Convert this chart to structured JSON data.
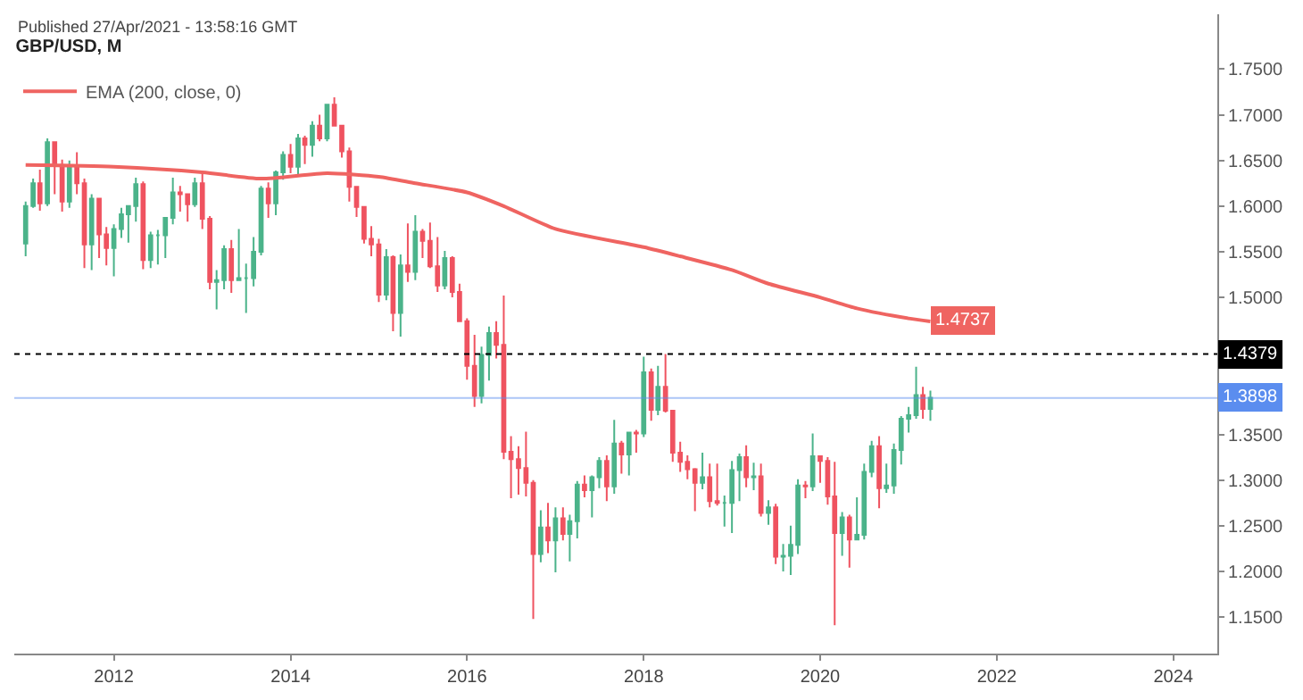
{
  "chart_data": {
    "type": "candlestick",
    "title": "GBP/USD, M",
    "annotations": [
      "Published 27/Apr/2021 - 13:58:16 GMT",
      {
        "text": "1.4737",
        "x": "2021-04",
        "y": 1.4737
      }
    ],
    "x": [
      "2011-01",
      "2011-02",
      "2011-03",
      "2011-04",
      "2011-05",
      "2011-06",
      "2011-07",
      "2011-08",
      "2011-09",
      "2011-10",
      "2011-11",
      "2011-12",
      "2012-01",
      "2012-02",
      "2012-03",
      "2012-04",
      "2012-05",
      "2012-06",
      "2012-07",
      "2012-08",
      "2012-09",
      "2012-10",
      "2012-11",
      "2012-12",
      "2013-01",
      "2013-02",
      "2013-03",
      "2013-04",
      "2013-05",
      "2013-06",
      "2013-07",
      "2013-08",
      "2013-09",
      "2013-10",
      "2013-11",
      "2013-12",
      "2014-01",
      "2014-02",
      "2014-03",
      "2014-04",
      "2014-05",
      "2014-06",
      "2014-07",
      "2014-08",
      "2014-09",
      "2014-10",
      "2014-11",
      "2014-12",
      "2015-01",
      "2015-02",
      "2015-03",
      "2015-04",
      "2015-05",
      "2015-06",
      "2015-07",
      "2015-08",
      "2015-09",
      "2015-10",
      "2015-11",
      "2015-12",
      "2016-01",
      "2016-02",
      "2016-03",
      "2016-04",
      "2016-05",
      "2016-06",
      "2016-07",
      "2016-08",
      "2016-09",
      "2016-10",
      "2016-11",
      "2016-12",
      "2017-01",
      "2017-02",
      "2017-03",
      "2017-04",
      "2017-05",
      "2017-06",
      "2017-07",
      "2017-08",
      "2017-09",
      "2017-10",
      "2017-11",
      "2017-12",
      "2018-01",
      "2018-02",
      "2018-03",
      "2018-04",
      "2018-05",
      "2018-06",
      "2018-07",
      "2018-08",
      "2018-09",
      "2018-10",
      "2018-11",
      "2018-12",
      "2019-01",
      "2019-02",
      "2019-03",
      "2019-04",
      "2019-05",
      "2019-06",
      "2019-07",
      "2019-08",
      "2019-09",
      "2019-10",
      "2019-11",
      "2019-12",
      "2020-01",
      "2020-02",
      "2020-03",
      "2020-04",
      "2020-05",
      "2020-06",
      "2020-07",
      "2020-08",
      "2020-09",
      "2020-10",
      "2020-11",
      "2020-12",
      "2021-01",
      "2021-02",
      "2021-03",
      "2021-04"
    ],
    "ohlc": [
      [
        1.559,
        1.605,
        1.545,
        1.6
      ],
      [
        1.6,
        1.63,
        1.598,
        1.625
      ],
      [
        1.625,
        1.64,
        1.595,
        1.603
      ],
      [
        1.603,
        1.674,
        1.6,
        1.67
      ],
      [
        1.67,
        1.67,
        1.613,
        1.645
      ],
      [
        1.645,
        1.651,
        1.594,
        1.605
      ],
      [
        1.605,
        1.65,
        1.598,
        1.643
      ],
      [
        1.643,
        1.659,
        1.613,
        1.625
      ],
      [
        1.625,
        1.63,
        1.532,
        1.558
      ],
      [
        1.558,
        1.613,
        1.53,
        1.608
      ],
      [
        1.608,
        1.609,
        1.543,
        1.569
      ],
      [
        1.569,
        1.577,
        1.535,
        1.554
      ],
      [
        1.554,
        1.58,
        1.523,
        1.575
      ],
      [
        1.575,
        1.598,
        1.565,
        1.591
      ],
      [
        1.591,
        1.601,
        1.56,
        1.6
      ],
      [
        1.6,
        1.631,
        1.583,
        1.624
      ],
      [
        1.624,
        1.627,
        1.531,
        1.541
      ],
      [
        1.541,
        1.572,
        1.532,
        1.568
      ],
      [
        1.568,
        1.574,
        1.536,
        1.568
      ],
      [
        1.568,
        1.588,
        1.543,
        1.587
      ],
      [
        1.587,
        1.631,
        1.58,
        1.615
      ],
      [
        1.615,
        1.622,
        1.594,
        1.613
      ],
      [
        1.613,
        1.614,
        1.583,
        1.602
      ],
      [
        1.602,
        1.631,
        1.599,
        1.625
      ],
      [
        1.625,
        1.638,
        1.575,
        1.586
      ],
      [
        1.586,
        1.589,
        1.509,
        1.517
      ],
      [
        1.517,
        1.53,
        1.487,
        1.519
      ],
      [
        1.519,
        1.557,
        1.509,
        1.553
      ],
      [
        1.553,
        1.563,
        1.505,
        1.519
      ],
      [
        1.519,
        1.575,
        1.518,
        1.521
      ],
      [
        1.521,
        1.537,
        1.483,
        1.521
      ],
      [
        1.521,
        1.566,
        1.512,
        1.55
      ],
      [
        1.55,
        1.622,
        1.546,
        1.619
      ],
      [
        1.619,
        1.626,
        1.587,
        1.603
      ],
      [
        1.603,
        1.639,
        1.59,
        1.637
      ],
      [
        1.637,
        1.66,
        1.629,
        1.656
      ],
      [
        1.656,
        1.668,
        1.636,
        1.643
      ],
      [
        1.643,
        1.679,
        1.632,
        1.674
      ],
      [
        1.674,
        1.677,
        1.646,
        1.667
      ],
      [
        1.667,
        1.693,
        1.654,
        1.688
      ],
      [
        1.688,
        1.7,
        1.671,
        1.674
      ],
      [
        1.674,
        1.711,
        1.671,
        1.711
      ],
      [
        1.711,
        1.719,
        1.688,
        1.688
      ],
      [
        1.688,
        1.689,
        1.653,
        1.66
      ],
      [
        1.66,
        1.664,
        1.605,
        1.621
      ],
      [
        1.621,
        1.621,
        1.588,
        1.599
      ],
      [
        1.599,
        1.6,
        1.559,
        1.564
      ],
      [
        1.564,
        1.578,
        1.545,
        1.558
      ],
      [
        1.558,
        1.564,
        1.495,
        1.503
      ],
      [
        1.503,
        1.553,
        1.497,
        1.544
      ],
      [
        1.544,
        1.546,
        1.463,
        1.483
      ],
      [
        1.483,
        1.547,
        1.457,
        1.535
      ],
      [
        1.535,
        1.581,
        1.517,
        1.528
      ],
      [
        1.528,
        1.59,
        1.519,
        1.572
      ],
      [
        1.572,
        1.575,
        1.543,
        1.562
      ],
      [
        1.562,
        1.582,
        1.532,
        1.534
      ],
      [
        1.534,
        1.566,
        1.506,
        1.513
      ],
      [
        1.513,
        1.551,
        1.509,
        1.543
      ],
      [
        1.543,
        1.545,
        1.5,
        1.506
      ],
      [
        1.506,
        1.515,
        1.473,
        1.474
      ],
      [
        1.474,
        1.477,
        1.41,
        1.425
      ],
      [
        1.425,
        1.459,
        1.38,
        1.392
      ],
      [
        1.392,
        1.446,
        1.384,
        1.437
      ],
      [
        1.437,
        1.468,
        1.409,
        1.461
      ],
      [
        1.461,
        1.474,
        1.433,
        1.448
      ],
      [
        1.448,
        1.502,
        1.323,
        1.331
      ],
      [
        1.331,
        1.348,
        1.28,
        1.323
      ],
      [
        1.323,
        1.337,
        1.284,
        1.313
      ],
      [
        1.313,
        1.353,
        1.282,
        1.297
      ],
      [
        1.297,
        1.3,
        1.148,
        1.219
      ],
      [
        1.219,
        1.267,
        1.21,
        1.248
      ],
      [
        1.248,
        1.275,
        1.22,
        1.234
      ],
      [
        1.234,
        1.27,
        1.199,
        1.258
      ],
      [
        1.258,
        1.27,
        1.234,
        1.241
      ],
      [
        1.241,
        1.262,
        1.211,
        1.255
      ],
      [
        1.255,
        1.299,
        1.236,
        1.295
      ],
      [
        1.295,
        1.305,
        1.281,
        1.289
      ],
      [
        1.289,
        1.305,
        1.259,
        1.303
      ],
      [
        1.303,
        1.325,
        1.291,
        1.321
      ],
      [
        1.321,
        1.327,
        1.277,
        1.293
      ],
      [
        1.293,
        1.366,
        1.285,
        1.34
      ],
      [
        1.34,
        1.343,
        1.307,
        1.328
      ],
      [
        1.328,
        1.353,
        1.305,
        1.352
      ],
      [
        1.352,
        1.355,
        1.33,
        1.351
      ],
      [
        1.351,
        1.435,
        1.347,
        1.418
      ],
      [
        1.418,
        1.422,
        1.365,
        1.377
      ],
      [
        1.377,
        1.425,
        1.371,
        1.402
      ],
      [
        1.402,
        1.438,
        1.374,
        1.376
      ],
      [
        1.376,
        1.376,
        1.32,
        1.33
      ],
      [
        1.33,
        1.342,
        1.309,
        1.32
      ],
      [
        1.32,
        1.327,
        1.301,
        1.312
      ],
      [
        1.312,
        1.313,
        1.266,
        1.297
      ],
      [
        1.297,
        1.33,
        1.29,
        1.303
      ],
      [
        1.303,
        1.318,
        1.27,
        1.277
      ],
      [
        1.277,
        1.318,
        1.272,
        1.275
      ],
      [
        1.275,
        1.283,
        1.249,
        1.275
      ],
      [
        1.275,
        1.321,
        1.242,
        1.311
      ],
      [
        1.311,
        1.329,
        1.277,
        1.325
      ],
      [
        1.325,
        1.338,
        1.292,
        1.303
      ],
      [
        1.303,
        1.319,
        1.289,
        1.304
      ],
      [
        1.304,
        1.318,
        1.26,
        1.264
      ],
      [
        1.264,
        1.278,
        1.251,
        1.27
      ],
      [
        1.27,
        1.274,
        1.208,
        1.216
      ],
      [
        1.216,
        1.23,
        1.2,
        1.217
      ],
      [
        1.217,
        1.25,
        1.196,
        1.229
      ],
      [
        1.229,
        1.301,
        1.219,
        1.294
      ],
      [
        1.294,
        1.299,
        1.28,
        1.293
      ],
      [
        1.293,
        1.351,
        1.288,
        1.326
      ],
      [
        1.326,
        1.327,
        1.297,
        1.321
      ],
      [
        1.321,
        1.325,
        1.273,
        1.282
      ],
      [
        1.282,
        1.32,
        1.141,
        1.242
      ],
      [
        1.242,
        1.265,
        1.217,
        1.259
      ],
      [
        1.259,
        1.262,
        1.204,
        1.235
      ],
      [
        1.235,
        1.281,
        1.234,
        1.24
      ],
      [
        1.24,
        1.318,
        1.235,
        1.309
      ],
      [
        1.309,
        1.343,
        1.303,
        1.337
      ],
      [
        1.337,
        1.348,
        1.269,
        1.291
      ],
      [
        1.291,
        1.318,
        1.286,
        1.294
      ],
      [
        1.294,
        1.34,
        1.285,
        1.333
      ],
      [
        1.333,
        1.37,
        1.317,
        1.367
      ],
      [
        1.367,
        1.38,
        1.352,
        1.371
      ],
      [
        1.371,
        1.424,
        1.367,
        1.393
      ],
      [
        1.393,
        1.402,
        1.367,
        1.378
      ],
      [
        1.378,
        1.398,
        1.365,
        1.39
      ]
    ],
    "colors": [
      "#4bb38a",
      "#4bb38a",
      "#ef5360",
      "#4bb38a",
      "#ef5360",
      "#ef5360",
      "#4bb38a",
      "#ef5360",
      "#ef5360",
      "#4bb38a",
      "#ef5360",
      "#ef5360",
      "#4bb38a",
      "#4bb38a",
      "#4bb38a",
      "#4bb38a",
      "#ef5360",
      "#4bb38a",
      "#4bb38a",
      "#4bb38a",
      "#4bb38a",
      "#ef5360",
      "#ef5360",
      "#4bb38a",
      "#ef5360",
      "#ef5360",
      "#4bb38a",
      "#4bb38a",
      "#ef5360",
      "#4bb38a",
      "#4bb38a",
      "#4bb38a",
      "#4bb38a",
      "#ef5360",
      "#4bb38a",
      "#4bb38a",
      "#ef5360",
      "#4bb38a",
      "#ef5360",
      "#4bb38a",
      "#ef5360",
      "#4bb38a",
      "#ef5360",
      "#ef5360",
      "#ef5360",
      "#ef5360",
      "#ef5360",
      "#ef5360",
      "#ef5360",
      "#4bb38a",
      "#ef5360",
      "#4bb38a",
      "#ef5360",
      "#4bb38a",
      "#ef5360",
      "#ef5360",
      "#ef5360",
      "#4bb38a",
      "#ef5360",
      "#ef5360",
      "#ef5360",
      "#ef5360",
      "#4bb38a",
      "#4bb38a",
      "#ef5360",
      "#ef5360",
      "#ef5360",
      "#ef5360",
      "#ef5360",
      "#ef5360",
      "#4bb38a",
      "#ef5360",
      "#4bb38a",
      "#ef5360",
      "#4bb38a",
      "#4bb38a",
      "#ef5360",
      "#4bb38a",
      "#4bb38a",
      "#ef5360",
      "#4bb38a",
      "#ef5360",
      "#4bb38a",
      "#ef5360",
      "#4bb38a",
      "#ef5360",
      "#4bb38a",
      "#ef5360",
      "#ef5360",
      "#ef5360",
      "#ef5360",
      "#ef5360",
      "#4bb38a",
      "#ef5360",
      "#ef5360",
      "#4bb38a",
      "#4bb38a",
      "#4bb38a",
      "#ef5360",
      "#4bb38a",
      "#ef5360",
      "#4bb38a",
      "#ef5360",
      "#4bb38a",
      "#4bb38a",
      "#4bb38a",
      "#ef5360",
      "#4bb38a",
      "#ef5360",
      "#ef5360",
      "#ef5360",
      "#4bb38a",
      "#ef5360",
      "#4bb38a",
      "#4bb38a",
      "#4bb38a",
      "#ef5360",
      "#4bb38a",
      "#4bb38a",
      "#4bb38a",
      "#4bb38a",
      "#4bb38a",
      "#ef5360",
      "#4bb38a"
    ],
    "series": [
      {
        "type": "line",
        "name": "EMA (200, close, 0)",
        "color": "#ef6461",
        "x": [
          "2011-01",
          "2012-01",
          "2013-01",
          "2013-09",
          "2014-06",
          "2015-01",
          "2015-06",
          "2016-01",
          "2016-06",
          "2017-01",
          "2018-01",
          "2018-06",
          "2019-01",
          "2019-06",
          "2020-01",
          "2020-06",
          "2021-01",
          "2021-04"
        ],
        "values": [
          1.645,
          1.643,
          1.637,
          1.63,
          1.636,
          1.632,
          1.625,
          1.615,
          1.6,
          1.575,
          1.555,
          1.545,
          1.53,
          1.515,
          1.5,
          1.488,
          1.477,
          1.4737
        ]
      }
    ],
    "ref_lines": [
      {
        "axis": "y",
        "value": 1.4379,
        "label": "1.4379",
        "color": "#000000",
        "line_style": "dotted"
      },
      {
        "axis": "y",
        "value": 1.3898,
        "label": "1.3898",
        "color": "#5b8def",
        "line_style": "solid"
      }
    ],
    "xlim": [
      "2010-11-15",
      "2024-07-01"
    ],
    "xticks": [
      {
        "value": "2012",
        "label": "2012"
      },
      {
        "value": "2014",
        "label": "2014"
      },
      {
        "value": "2016",
        "label": "2016"
      },
      {
        "value": "2018",
        "label": "2018"
      },
      {
        "value": "2020",
        "label": "2020"
      },
      {
        "value": "2022",
        "label": "2022"
      },
      {
        "value": "2024",
        "label": "2024"
      }
    ],
    "ylim": [
      1.11,
      1.81
    ],
    "yticks": [
      {
        "value": 1.15,
        "label": "1.1500"
      },
      {
        "value": 1.2,
        "label": "1.2000"
      },
      {
        "value": 1.25,
        "label": "1.2500"
      },
      {
        "value": 1.3,
        "label": "1.3000"
      },
      {
        "value": 1.35,
        "label": "1.3500"
      },
      {
        "value": 1.4,
        "label": null
      },
      {
        "value": 1.45,
        "label": null
      },
      {
        "value": 1.5,
        "label": "1.5000"
      },
      {
        "value": 1.55,
        "label": "1.5500"
      },
      {
        "value": 1.6,
        "label": "1.6000"
      },
      {
        "value": 1.65,
        "label": "1.6500"
      },
      {
        "value": 1.7,
        "label": "1.7000"
      },
      {
        "value": 1.75,
        "label": "1.7500"
      }
    ],
    "legend": "top left"
  }
}
